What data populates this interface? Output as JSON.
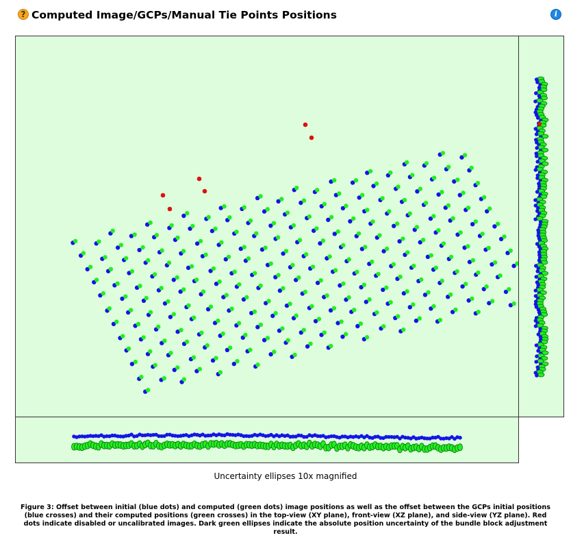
{
  "header": {
    "title": "Computed Image/GCPs/Manual Tie Points Positions",
    "help_icon": "question-mark-icon",
    "info_icon": "info-icon"
  },
  "colors": {
    "panel_bg": "#ddfddd",
    "initial": "#1515e6",
    "computed": "#22ee22",
    "disabled": "#e01010",
    "ellipse": "#0d6e0d"
  },
  "caption": "Uncertainty ellipses 10x magnified",
  "figure_caption": "Figure 3: Offset between initial (blue dots) and computed (green dots) image positions as well as the offset between the GCPs initial positions (blue crosses) and their computed positions (green crosses) in the top-view (XY plane), front-view (XZ plane), and side-view (YZ plane). Red dots indicate disabled or uncalibrated images. Dark green ellipses indicate the absolute position uncertainty of the bundle block adjustment result."
}
